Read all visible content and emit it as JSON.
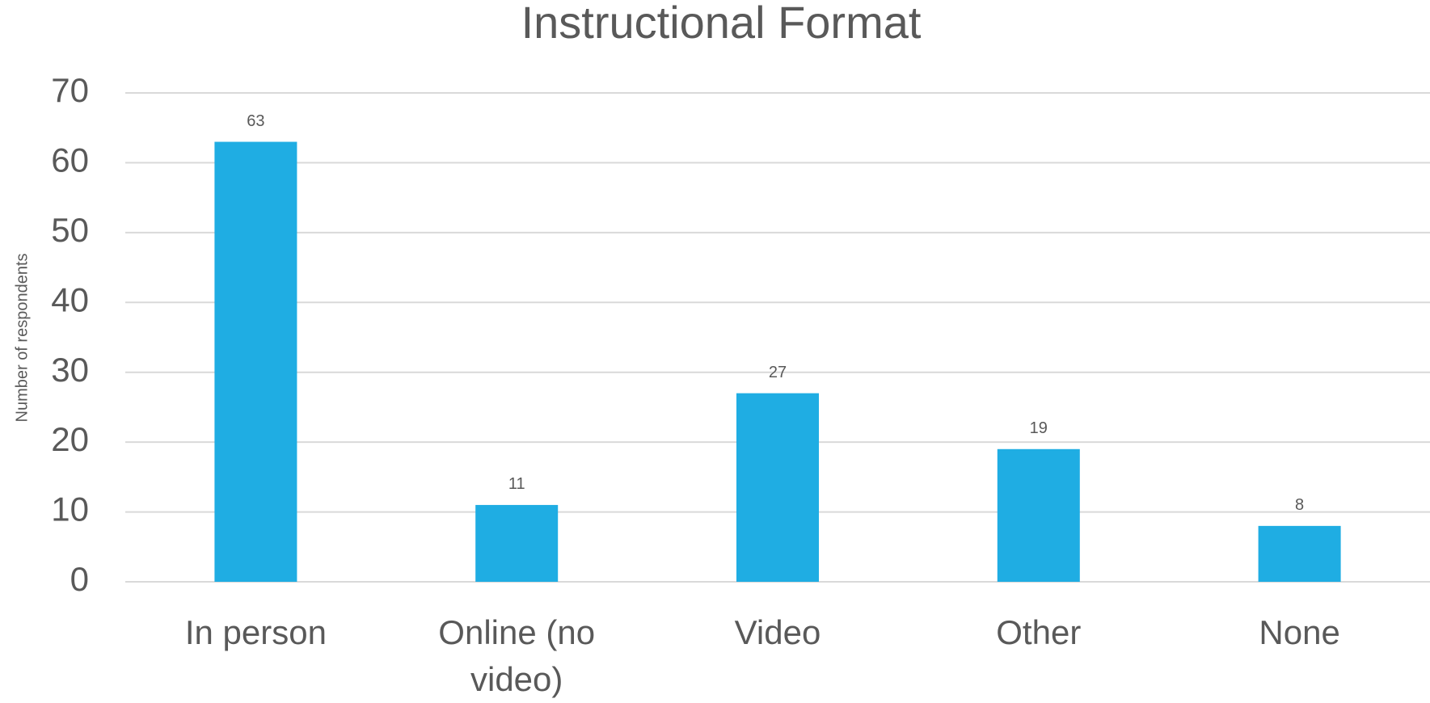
{
  "chart_data": {
    "type": "bar",
    "title": "Instructional Format",
    "ylabel": "Number of respondents",
    "categories": [
      "In person",
      "Online (no video)",
      "Video",
      "Other",
      "None"
    ],
    "values": [
      63,
      11,
      27,
      19,
      8
    ],
    "color": "#1fade3",
    "ylim": [
      0,
      70
    ],
    "yticks": [
      0,
      10,
      20,
      30,
      40,
      50,
      60,
      70
    ],
    "grid": true
  }
}
